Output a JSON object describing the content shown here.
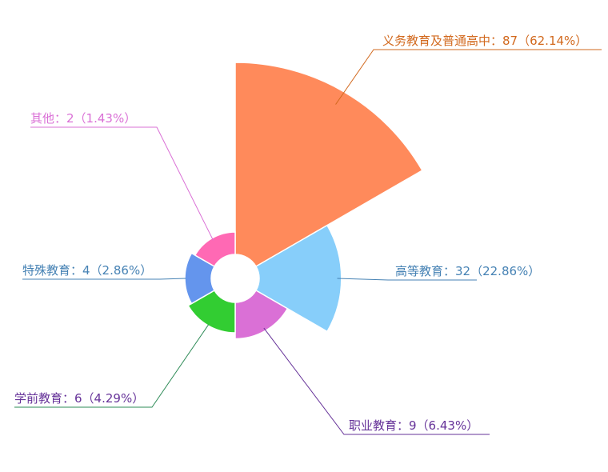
{
  "chart_data": {
    "type": "pie",
    "subtype": "rose",
    "series": [
      {
        "name": "义务教育及普通高中",
        "value": 87,
        "percent": "62.14%",
        "color": "#ff8a5b",
        "label": "义务教育及普通高中：87（62.14%）"
      },
      {
        "name": "高等教育",
        "value": 32,
        "percent": "22.86%",
        "color": "#87cefa",
        "label": "高等教育：32（22.86%）"
      },
      {
        "name": "职业教育",
        "value": 9,
        "percent": "6.43%",
        "color": "#da70d6",
        "label": "职业教育：9（6.43%）"
      },
      {
        "name": "学前教育",
        "value": 6,
        "percent": "4.29%",
        "color": "#32cd32",
        "label": "学前教育：6（4.29%）"
      },
      {
        "name": "特殊教育",
        "value": 4,
        "percent": "2.86%",
        "color": "#6495ed",
        "label": "特殊教育：4（2.86%）"
      },
      {
        "name": "其他",
        "value": 2,
        "percent": "1.43%",
        "color": "#ff69b4",
        "label": "其他：2（1.43%）"
      }
    ],
    "label_colors": [
      "#d2691e",
      "#4682b4",
      "#663399",
      "#663399",
      "#4682b4",
      "#da70d6"
    ],
    "leader_colors": [
      "#d2691e",
      "#4682b4",
      "#663399",
      "#2e8b57",
      "#4682b4",
      "#da70d6"
    ]
  }
}
